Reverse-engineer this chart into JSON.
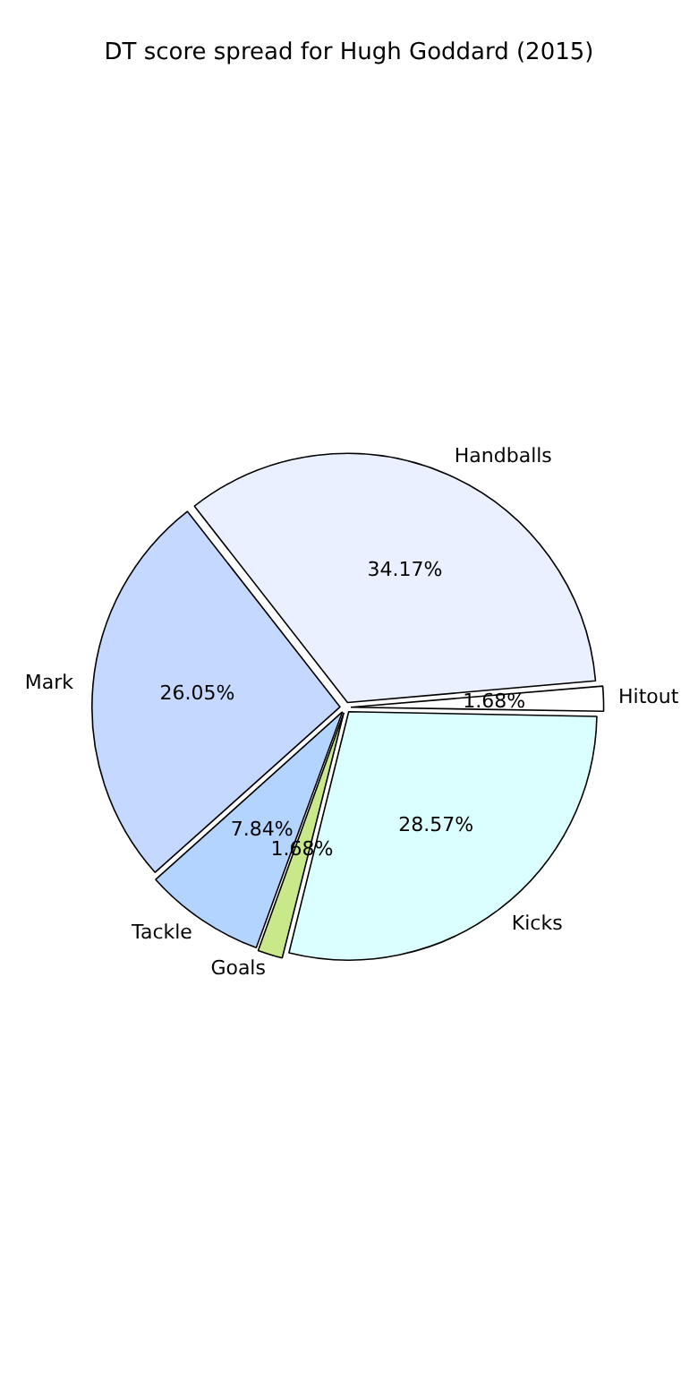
{
  "chart_data": {
    "type": "pie",
    "title": "DT score spread for Hugh Goddard (2015)",
    "categories": [
      "Handballs",
      "Hitout",
      "Kicks",
      "Goals",
      "Tackle",
      "Mark"
    ],
    "values": [
      34.17,
      1.68,
      28.57,
      1.68,
      7.84,
      26.05
    ],
    "colors": [
      "#eaf0ff",
      "#ffffff",
      "#dbffff",
      "#c8e88a",
      "#b3d4ff",
      "#c5d8ff"
    ],
    "value_labels": [
      "34.17%",
      "1.68%",
      "28.57%",
      "1.68%",
      "7.84%",
      "26.05%"
    ]
  }
}
